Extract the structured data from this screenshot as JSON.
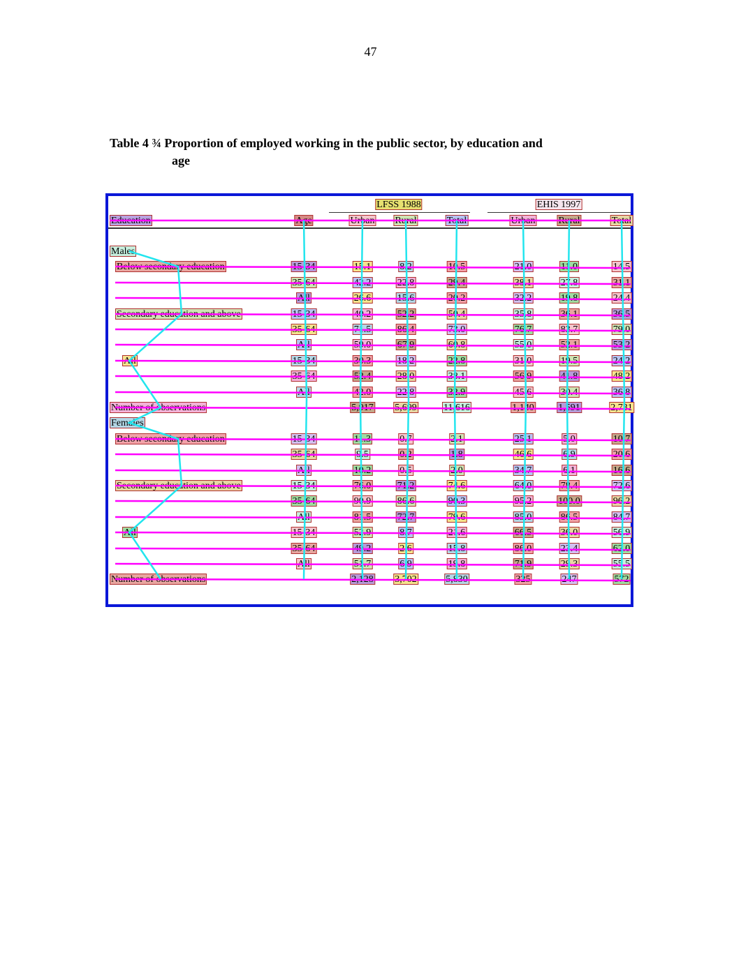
{
  "page_number": "47",
  "title": {
    "line1": "Table 4 ¾ Proportion of employed working in the public sector, by education and",
    "line2": "age"
  },
  "headers": {
    "survey1": "LFSS 1988",
    "survey2": "EHIS 1997",
    "education": "Education",
    "age": "Age",
    "columns": [
      "Urban",
      "Rural",
      "Total",
      "Urban",
      "Rural",
      "Total"
    ]
  },
  "rows": [
    {
      "kind": "group",
      "label": "Males"
    },
    {
      "label": "Below secondary education",
      "age": "15-34",
      "values": [
        "15.1",
        "8.2",
        "10.5",
        "21.0",
        "11.0",
        "14.5"
      ]
    },
    {
      "label": "",
      "age": "35-64",
      "values": [
        "42.2",
        "22.8",
        "29.4",
        "38.1",
        "27.8",
        "31.1"
      ]
    },
    {
      "label": "",
      "age": "All",
      "values": [
        "26.6",
        "15.6",
        "20.2",
        "32.2",
        "19.8",
        "24.4"
      ]
    },
    {
      "label": "Secondary education and above",
      "age": "15-34",
      "values": [
        "40.2",
        "52.2",
        "50.4",
        "35.8",
        "36.1",
        "36.5"
      ]
    },
    {
      "label": "",
      "age": "35-64",
      "values": [
        "71.5",
        "86.4",
        "73.0",
        "76.7",
        "83.7",
        "79.0"
      ]
    },
    {
      "label": "",
      "age": "All",
      "values": [
        "59.0",
        "67.9",
        "60.8",
        "55.0",
        "52.1",
        "53.2"
      ]
    },
    {
      "label": "All",
      "age": "15-34",
      "values": [
        "30.3",
        "18.2",
        "22.8",
        "31.0",
        "19.5",
        "24.2"
      ]
    },
    {
      "label": "",
      "age": "35-64",
      "values": [
        "52.4",
        "28.0",
        "38.1",
        "56.9",
        "41.8",
        "48.2"
      ]
    },
    {
      "label": "",
      "age": "All",
      "values": [
        "42.0",
        "22.8",
        "32.9",
        "45.6",
        "30.4",
        "36.8"
      ]
    },
    {
      "kind": "obs",
      "label": "Number of observations",
      "values": [
        "5,917",
        "5,699",
        "11,616",
        "1,140",
        "1,591",
        "2,731"
      ]
    },
    {
      "kind": "group",
      "label": "Females"
    },
    {
      "label": "Below secondary education",
      "age": "15-34",
      "values": [
        "11.3",
        "0.7",
        "2.1",
        "25.1",
        "5.0",
        "10.7"
      ]
    },
    {
      "label": "",
      "age": "35-64",
      "values": [
        "9.5",
        "0.2",
        "1.8",
        "46.6",
        "6.9",
        "20.6"
      ]
    },
    {
      "label": "",
      "age": "All",
      "values": [
        "10.2",
        "0.5",
        "2.0",
        "34.7",
        "6.1",
        "16.6"
      ]
    },
    {
      "label": "Secondary education and above",
      "age": "15-34",
      "values": [
        "76.0",
        "71.2",
        "74.6",
        "64.0",
        "78.4",
        "72.6"
      ]
    },
    {
      "label": "",
      "age": "35-64",
      "values": [
        "90.9",
        "86.6",
        "90.3",
        "95.2",
        "100.0",
        "96.2"
      ]
    },
    {
      "label": "",
      "age": "All",
      "values": [
        "81.5",
        "72.7",
        "79.6",
        "85.0",
        "86.5",
        "84.7"
      ]
    },
    {
      "label": "All",
      "age": "15-34",
      "values": [
        "52.9",
        "8.7",
        "21.6",
        "66.5",
        "36.0",
        "56.9"
      ]
    },
    {
      "label": "",
      "age": "35-64",
      "values": [
        "49.2",
        "2.6",
        "15.8",
        "86.0",
        "23.4",
        "62.0"
      ]
    },
    {
      "label": "",
      "age": "All",
      "values": [
        "51.7",
        "6.9",
        "19.8",
        "71.9",
        "29.3",
        "55.5"
      ]
    },
    {
      "kind": "obs",
      "label": "Number of observations",
      "values": [
        "2,128",
        "3,702",
        "5,830",
        "325",
        "247",
        "572"
      ]
    }
  ],
  "colors": {
    "frame": "#0a17d8",
    "row_link": "#ff00ff",
    "column_link": "#22e5ee"
  }
}
